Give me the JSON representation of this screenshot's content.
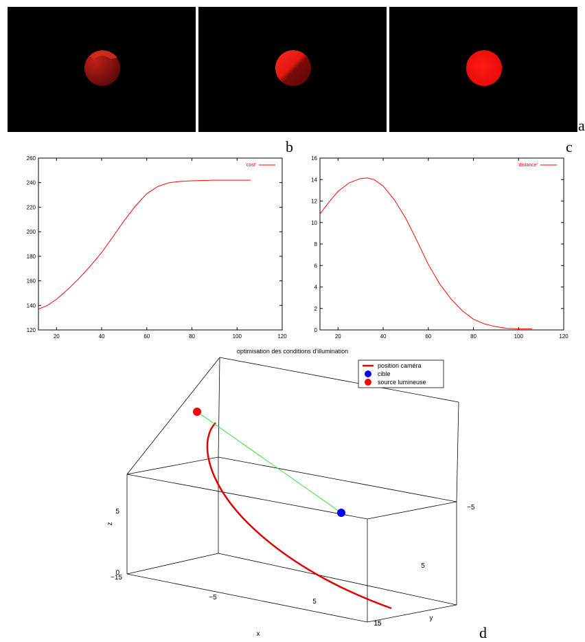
{
  "letters": {
    "a": "a",
    "b": "b",
    "c": "c",
    "d": "d"
  },
  "spheres": [
    {
      "name": "a",
      "state": "dim, lit from one side"
    },
    {
      "name": "b",
      "state": "partially lit"
    },
    {
      "name": "c",
      "state": "fully lit"
    }
  ],
  "chart_data": [
    {
      "type": "line",
      "title": "",
      "xlabel": "",
      "ylabel": "",
      "xlim": [
        12,
        120
      ],
      "ylim": [
        120,
        260
      ],
      "xticks": [
        20,
        40,
        60,
        80,
        100,
        120
      ],
      "yticks": [
        120,
        140,
        160,
        180,
        200,
        220,
        240,
        260
      ],
      "legend_position": "top-right",
      "series": [
        {
          "name": "'cost'",
          "color": "#ff0000",
          "x": [
            12,
            16,
            20,
            25,
            30,
            35,
            40,
            45,
            50,
            55,
            60,
            65,
            70,
            75,
            80,
            85,
            90,
            95,
            100,
            106
          ],
          "y": [
            137,
            140,
            145,
            153,
            162,
            172,
            183,
            196,
            209,
            221,
            231,
            237,
            240,
            241,
            241.5,
            241.8,
            242,
            242,
            242,
            242
          ]
        }
      ]
    },
    {
      "type": "line",
      "title": "",
      "xlabel": "",
      "ylabel": "",
      "xlim": [
        12,
        120
      ],
      "ylim": [
        0,
        16
      ],
      "xticks": [
        20,
        40,
        60,
        80,
        100,
        120
      ],
      "yticks": [
        0,
        2,
        4,
        6,
        8,
        10,
        12,
        14,
        16
      ],
      "legend_position": "top-right",
      "series": [
        {
          "name": "'distance'",
          "color": "#ff0000",
          "x": [
            12,
            16,
            20,
            25,
            30,
            33,
            36,
            40,
            45,
            50,
            55,
            60,
            65,
            70,
            75,
            80,
            85,
            90,
            95,
            100,
            106
          ],
          "y": [
            10.8,
            11.9,
            12.9,
            13.7,
            14.1,
            14.15,
            14.0,
            13.4,
            12.1,
            10.4,
            8.3,
            6.1,
            4.3,
            2.9,
            1.8,
            1.0,
            0.55,
            0.3,
            0.15,
            0.1,
            0.1
          ]
        }
      ]
    },
    {
      "type": "scatter",
      "title": "optimisation des conditions d'illumination",
      "xlabel": "x",
      "ylabel": "y",
      "zlabel": "z",
      "xticks": [
        "−15",
        "−5",
        "5",
        "15"
      ],
      "yticks": [
        "−5",
        "5",
        "15"
      ],
      "zticks": [
        "0",
        "5"
      ],
      "legend_position": "top-right",
      "legend": [
        {
          "label": "position caméra",
          "color": "#e00000",
          "marker": "line"
        },
        {
          "label": "cible",
          "color": "#0000ff",
          "marker": "dot"
        },
        {
          "label": "source lumineuse",
          "color": "#ff0000",
          "marker": "dot"
        }
      ]
    }
  ]
}
